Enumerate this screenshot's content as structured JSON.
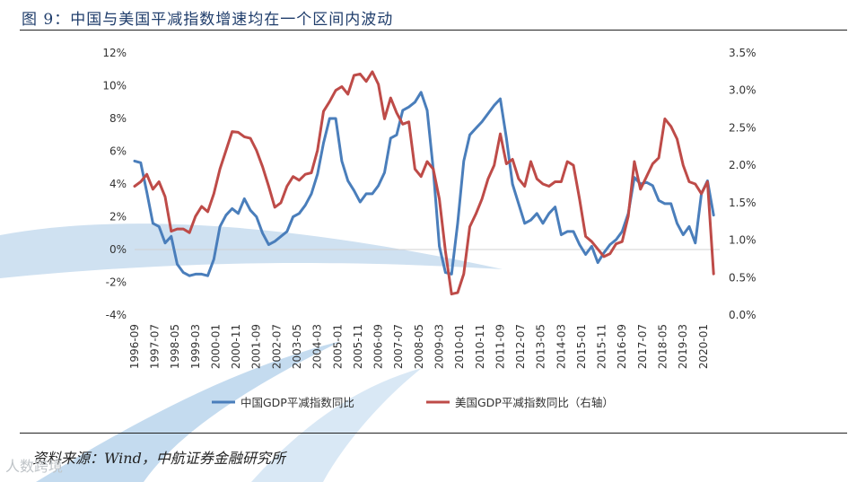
{
  "figure_title": "图 9：中国与美国平减指数增速均在一个区间内波动",
  "source_note": "资料来源：Wind，中航证券金融研究所",
  "watermark_text": "人数跨境",
  "colors": {
    "china": "#4a7ebb",
    "us": "#be4b48",
    "decor": "#b9d3eb",
    "rule": "#222222"
  },
  "chart_data": {
    "type": "line",
    "title": "",
    "x_tick_labels": [
      "1996-09",
      "1997-07",
      "1998-05",
      "1999-03",
      "2000-01",
      "2000-11",
      "2001-09",
      "2002-07",
      "2003-05",
      "2004-03",
      "2005-01",
      "2005-11",
      "2006-09",
      "2007-07",
      "2008-05",
      "2009-03",
      "2010-01",
      "2010-11",
      "2011-09",
      "2012-07",
      "2013-05",
      "2014-03",
      "2015-01",
      "2015-11",
      "2016-09",
      "2017-07",
      "2018-05",
      "2019-03",
      "2020-01"
    ],
    "x_range": [
      "1996-09",
      "2020-09"
    ],
    "y_left": {
      "ticks": [
        "12%",
        "10%",
        "8%",
        "6%",
        "4%",
        "2%",
        "0%",
        "-2%",
        "-4%"
      ],
      "range": [
        -4,
        12
      ]
    },
    "y_right": {
      "ticks": [
        "3.5%",
        "3.0%",
        "2.5%",
        "2.0%",
        "1.5%",
        "1.0%",
        "0.5%",
        "0.0%"
      ],
      "range": [
        0,
        3.5
      ]
    },
    "legend": [
      "中国GDP平减指数同比",
      "美国GDP平减指数同比（右轴）"
    ],
    "series": [
      {
        "name": "中国GDP平减指数同比",
        "axis": "left",
        "color": "#4a7ebb",
        "points": [
          [
            1996.67,
            5.4
          ],
          [
            1996.92,
            5.3
          ],
          [
            1997.17,
            3.5
          ],
          [
            1997.42,
            1.6
          ],
          [
            1997.67,
            1.4
          ],
          [
            1997.92,
            0.4
          ],
          [
            1998.17,
            0.8
          ],
          [
            1998.42,
            -0.9
          ],
          [
            1998.67,
            -1.4
          ],
          [
            1998.92,
            -1.6
          ],
          [
            1999.17,
            -1.5
          ],
          [
            1999.42,
            -1.5
          ],
          [
            1999.67,
            -1.6
          ],
          [
            1999.92,
            -0.6
          ],
          [
            2000.17,
            1.4
          ],
          [
            2000.42,
            2.1
          ],
          [
            2000.67,
            2.5
          ],
          [
            2000.92,
            2.2
          ],
          [
            2001.17,
            3.1
          ],
          [
            2001.42,
            2.4
          ],
          [
            2001.67,
            2.0
          ],
          [
            2001.92,
            1.0
          ],
          [
            2002.17,
            0.3
          ],
          [
            2002.42,
            0.5
          ],
          [
            2002.67,
            0.8
          ],
          [
            2002.92,
            1.1
          ],
          [
            2003.17,
            2.0
          ],
          [
            2003.42,
            2.2
          ],
          [
            2003.67,
            2.7
          ],
          [
            2003.92,
            3.4
          ],
          [
            2004.17,
            4.6
          ],
          [
            2004.42,
            6.5
          ],
          [
            2004.67,
            8.0
          ],
          [
            2004.92,
            8.0
          ],
          [
            2005.17,
            5.4
          ],
          [
            2005.42,
            4.2
          ],
          [
            2005.67,
            3.6
          ],
          [
            2005.92,
            2.9
          ],
          [
            2006.17,
            3.4
          ],
          [
            2006.42,
            3.4
          ],
          [
            2006.67,
            3.9
          ],
          [
            2006.92,
            4.7
          ],
          [
            2007.17,
            6.8
          ],
          [
            2007.42,
            7.0
          ],
          [
            2007.67,
            8.5
          ],
          [
            2007.92,
            8.7
          ],
          [
            2008.17,
            9.0
          ],
          [
            2008.42,
            9.6
          ],
          [
            2008.67,
            8.5
          ],
          [
            2008.92,
            4.9
          ],
          [
            2009.17,
            0.2
          ],
          [
            2009.42,
            -1.4
          ],
          [
            2009.67,
            -1.5
          ],
          [
            2009.92,
            1.6
          ],
          [
            2010.17,
            5.4
          ],
          [
            2010.42,
            7.0
          ],
          [
            2010.67,
            7.4
          ],
          [
            2010.92,
            7.8
          ],
          [
            2011.17,
            8.3
          ],
          [
            2011.42,
            8.8
          ],
          [
            2011.67,
            9.2
          ],
          [
            2011.92,
            6.8
          ],
          [
            2012.17,
            4.0
          ],
          [
            2012.42,
            2.8
          ],
          [
            2012.67,
            1.6
          ],
          [
            2012.92,
            1.8
          ],
          [
            2013.17,
            2.2
          ],
          [
            2013.42,
            1.6
          ],
          [
            2013.67,
            2.2
          ],
          [
            2013.92,
            2.6
          ],
          [
            2014.17,
            0.9
          ],
          [
            2014.42,
            1.1
          ],
          [
            2014.67,
            1.1
          ],
          [
            2014.92,
            0.3
          ],
          [
            2015.17,
            -0.3
          ],
          [
            2015.42,
            0.2
          ],
          [
            2015.67,
            -0.8
          ],
          [
            2015.92,
            -0.2
          ],
          [
            2016.17,
            0.3
          ],
          [
            2016.42,
            0.6
          ],
          [
            2016.67,
            1.1
          ],
          [
            2016.92,
            2.2
          ],
          [
            2017.17,
            4.4
          ],
          [
            2017.42,
            4.0
          ],
          [
            2017.67,
            4.1
          ],
          [
            2017.92,
            3.9
          ],
          [
            2018.17,
            3.0
          ],
          [
            2018.42,
            2.8
          ],
          [
            2018.67,
            2.8
          ],
          [
            2018.92,
            1.6
          ],
          [
            2019.17,
            0.9
          ],
          [
            2019.42,
            1.4
          ],
          [
            2019.67,
            0.4
          ],
          [
            2019.92,
            3.4
          ],
          [
            2020.17,
            4.2
          ],
          [
            2020.42,
            2.1
          ]
        ]
      },
      {
        "name": "美国GDP平减指数同比（右轴）",
        "axis": "right",
        "color": "#be4b48",
        "points": [
          [
            1996.67,
            1.72
          ],
          [
            1996.92,
            1.78
          ],
          [
            1997.17,
            1.88
          ],
          [
            1997.42,
            1.68
          ],
          [
            1997.67,
            1.78
          ],
          [
            1997.92,
            1.58
          ],
          [
            1998.17,
            1.12
          ],
          [
            1998.42,
            1.15
          ],
          [
            1998.67,
            1.15
          ],
          [
            1998.92,
            1.1
          ],
          [
            1999.17,
            1.32
          ],
          [
            1999.42,
            1.45
          ],
          [
            1999.67,
            1.38
          ],
          [
            1999.92,
            1.62
          ],
          [
            2000.17,
            1.95
          ],
          [
            2000.42,
            2.2
          ],
          [
            2000.67,
            2.45
          ],
          [
            2000.92,
            2.44
          ],
          [
            2001.17,
            2.38
          ],
          [
            2001.42,
            2.36
          ],
          [
            2001.67,
            2.2
          ],
          [
            2001.92,
            1.98
          ],
          [
            2002.17,
            1.72
          ],
          [
            2002.42,
            1.44
          ],
          [
            2002.67,
            1.5
          ],
          [
            2002.92,
            1.72
          ],
          [
            2003.17,
            1.85
          ],
          [
            2003.42,
            1.8
          ],
          [
            2003.67,
            1.88
          ],
          [
            2003.92,
            1.9
          ],
          [
            2004.17,
            2.2
          ],
          [
            2004.42,
            2.72
          ],
          [
            2004.67,
            2.85
          ],
          [
            2004.92,
            3.0
          ],
          [
            2005.17,
            3.05
          ],
          [
            2005.42,
            2.95
          ],
          [
            2005.67,
            3.2
          ],
          [
            2005.92,
            3.22
          ],
          [
            2006.17,
            3.12
          ],
          [
            2006.42,
            3.25
          ],
          [
            2006.67,
            3.08
          ],
          [
            2006.92,
            2.62
          ],
          [
            2007.17,
            2.9
          ],
          [
            2007.42,
            2.7
          ],
          [
            2007.67,
            2.55
          ],
          [
            2007.92,
            2.58
          ],
          [
            2008.17,
            1.95
          ],
          [
            2008.42,
            1.85
          ],
          [
            2008.67,
            2.05
          ],
          [
            2008.92,
            1.95
          ],
          [
            2009.17,
            1.55
          ],
          [
            2009.42,
            0.85
          ],
          [
            2009.67,
            0.28
          ],
          [
            2009.92,
            0.3
          ],
          [
            2010.17,
            0.55
          ],
          [
            2010.42,
            1.18
          ],
          [
            2010.67,
            1.35
          ],
          [
            2010.92,
            1.55
          ],
          [
            2011.17,
            1.82
          ],
          [
            2011.42,
            2.0
          ],
          [
            2011.67,
            2.42
          ],
          [
            2011.92,
            2.02
          ],
          [
            2012.17,
            2.08
          ],
          [
            2012.42,
            1.82
          ],
          [
            2012.67,
            1.72
          ],
          [
            2012.92,
            2.05
          ],
          [
            2013.17,
            1.82
          ],
          [
            2013.42,
            1.75
          ],
          [
            2013.67,
            1.72
          ],
          [
            2013.92,
            1.78
          ],
          [
            2014.17,
            1.78
          ],
          [
            2014.42,
            2.05
          ],
          [
            2014.67,
            2.0
          ],
          [
            2014.92,
            1.55
          ],
          [
            2015.17,
            1.05
          ],
          [
            2015.42,
            0.98
          ],
          [
            2015.67,
            0.88
          ],
          [
            2015.92,
            0.78
          ],
          [
            2016.17,
            0.82
          ],
          [
            2016.42,
            0.95
          ],
          [
            2016.67,
            0.98
          ],
          [
            2016.92,
            1.32
          ],
          [
            2017.17,
            2.05
          ],
          [
            2017.42,
            1.68
          ],
          [
            2017.67,
            1.85
          ],
          [
            2017.92,
            2.02
          ],
          [
            2018.17,
            2.1
          ],
          [
            2018.42,
            2.62
          ],
          [
            2018.67,
            2.52
          ],
          [
            2018.92,
            2.35
          ],
          [
            2019.17,
            2.0
          ],
          [
            2019.42,
            1.78
          ],
          [
            2019.67,
            1.75
          ],
          [
            2019.92,
            1.62
          ],
          [
            2020.17,
            1.78
          ],
          [
            2020.42,
            0.55
          ]
        ]
      }
    ]
  }
}
